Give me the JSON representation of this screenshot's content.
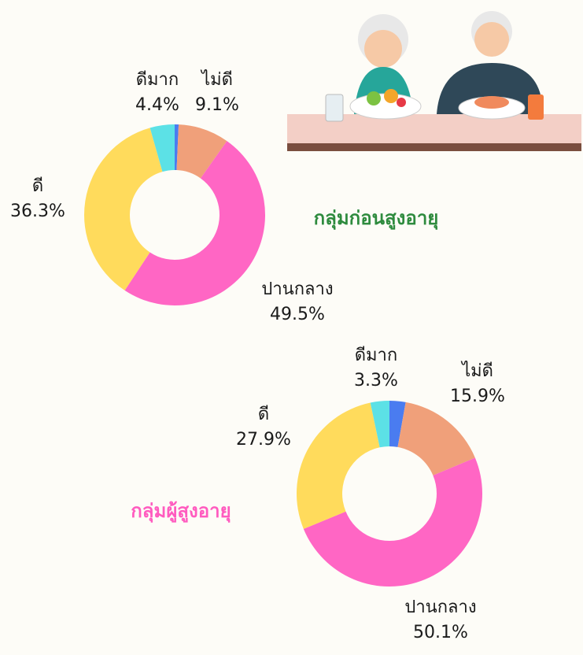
{
  "chart_data": [
    {
      "type": "pie",
      "title": "กลุ่มก่อนสูงอายุ",
      "title_color": "#2e8b3e",
      "categories": [
        null,
        "ไม่ดี",
        "ปานกลาง",
        "ดี",
        "ดีมาก"
      ],
      "values": [
        0.7,
        9.1,
        49.5,
        36.3,
        4.4
      ],
      "value_labels": [
        null,
        "9.1%",
        "49.5%",
        "36.3%",
        "4.4%"
      ],
      "colors": [
        "#4a7cf0",
        "#f0a07a",
        "#ff66c4",
        "#ffdb5c",
        "#5ce1e6"
      ]
    },
    {
      "type": "pie",
      "title": "กลุ่มผู้สูงอายุ",
      "title_color": "#ff5bbf",
      "categories": [
        null,
        "ไม่ดี",
        "ปานกลาง",
        "ดี",
        "ดีมาก"
      ],
      "values": [
        2.8,
        15.9,
        50.1,
        27.9,
        3.3
      ],
      "value_labels": [
        null,
        "15.9%",
        "50.1%",
        "27.9%",
        "3.3%"
      ],
      "colors": [
        "#4a7cf0",
        "#f0a07a",
        "#ff66c4",
        "#ffdb5c",
        "#5ce1e6"
      ]
    }
  ]
}
